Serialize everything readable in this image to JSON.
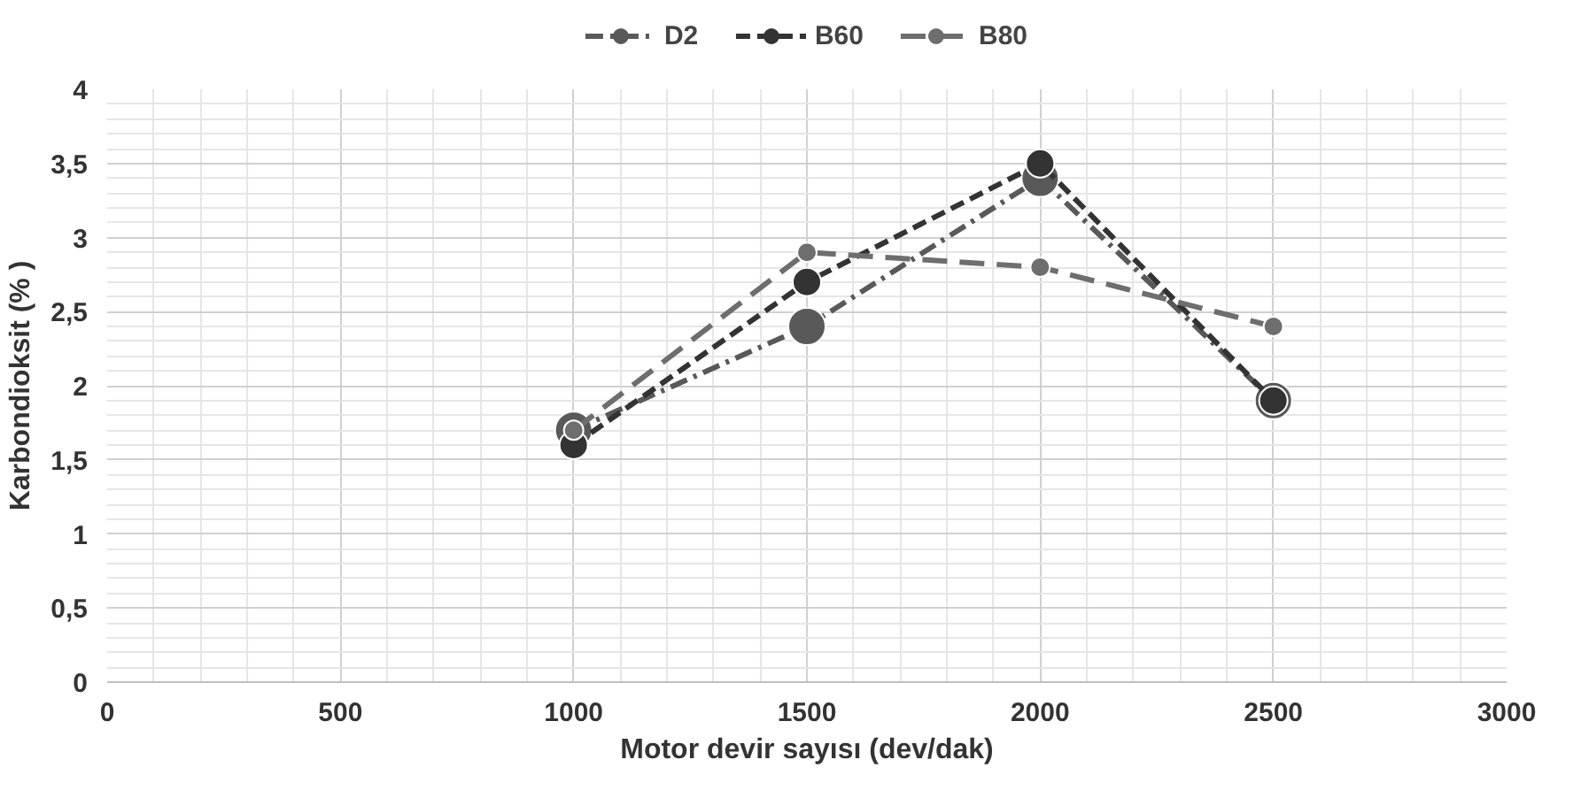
{
  "chart_data": {
    "type": "line",
    "xlabel": "Motor devir sayısı (dev/dak)",
    "ylabel": "Karbondioksit (% )",
    "x": [
      1000,
      1500,
      2000,
      2500
    ],
    "series": [
      {
        "name": "D2",
        "color": "#595959",
        "values": [
          1.7,
          2.4,
          3.4,
          1.9
        ],
        "line_style": "dashdot"
      },
      {
        "name": "B60",
        "color": "#333333",
        "values": [
          1.6,
          2.7,
          3.5,
          1.9
        ],
        "line_style": "dashed"
      },
      {
        "name": "B80",
        "color": "#6e6e6e",
        "values": [
          1.7,
          2.9,
          2.8,
          2.4
        ],
        "line_style": "longdash"
      }
    ],
    "xlim": [
      0,
      3000
    ],
    "xticks": [
      0,
      500,
      1000,
      1500,
      2000,
      2500,
      3000
    ],
    "ylim": [
      0,
      4
    ],
    "yticks": [
      0,
      {
        "value": 0.5,
        "label": "0,5"
      },
      1,
      {
        "value": 1.5,
        "label": "1,5"
      },
      2,
      {
        "value": 2.5,
        "label": "2,5"
      },
      3,
      {
        "value": 3.5,
        "label": "3,5"
      },
      4
    ],
    "grid": true,
    "legend": "top",
    "marker": "circle"
  }
}
